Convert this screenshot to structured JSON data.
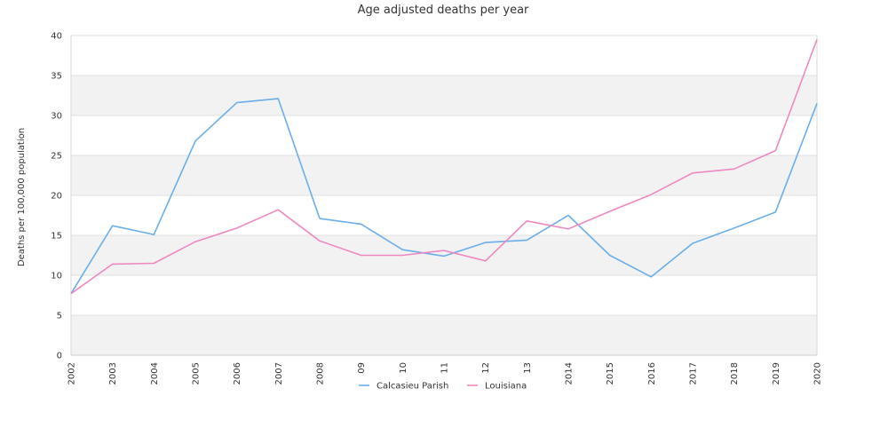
{
  "chart_data": {
    "type": "line",
    "title": "Age adjusted deaths per year",
    "xlabel": "",
    "ylabel": "Deaths per 100,000 population",
    "x": [
      "2002",
      "2003",
      "2004",
      "2005",
      "2006",
      "2007",
      "2008",
      "09",
      "10",
      "11",
      "12",
      "13",
      "2014",
      "2015",
      "2016",
      "2017",
      "2018",
      "2019",
      "2020"
    ],
    "ylim": [
      0,
      40
    ],
    "yticks": [
      0,
      5,
      10,
      15,
      20,
      25,
      30,
      35,
      40
    ],
    "grid": "horizontal bands",
    "legend": "bottom-center",
    "series": [
      {
        "name": "Calcasieu Parish",
        "color": "#6aaeea",
        "values": [
          7.7,
          16.2,
          15.1,
          26.8,
          31.6,
          32.1,
          17.1,
          16.4,
          13.2,
          12.4,
          14.1,
          14.4,
          17.5,
          12.5,
          9.8,
          14.0,
          15.9,
          17.9,
          31.5
        ]
      },
      {
        "name": "Louisiana",
        "color": "#ee88c0",
        "values": [
          7.7,
          11.4,
          11.5,
          14.2,
          15.9,
          18.2,
          14.3,
          12.5,
          12.5,
          13.1,
          11.8,
          16.8,
          15.8,
          18.0,
          20.1,
          22.8,
          23.3,
          25.6,
          39.5
        ]
      }
    ]
  }
}
